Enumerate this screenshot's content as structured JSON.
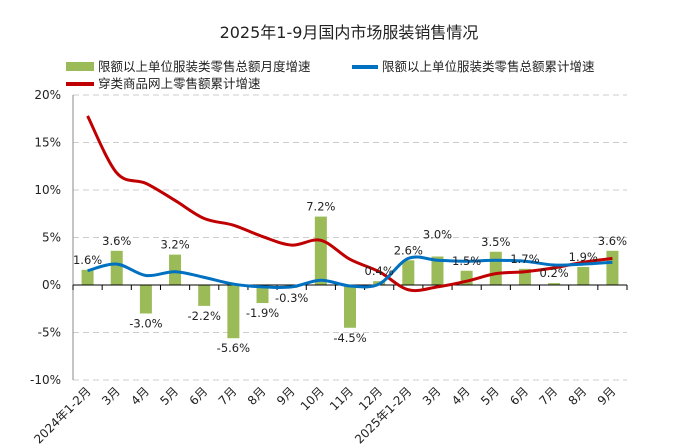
{
  "chart_data": {
    "type": "bar+line",
    "title": "2025年1-9月国内市场服装销售情况",
    "categories": [
      "2024年1-2月",
      "3月",
      "4月",
      "5月",
      "6月",
      "7月",
      "8月",
      "9月",
      "10月",
      "11月",
      "12月",
      "2025年1-2月",
      "3月",
      "4月",
      "5月",
      "6月",
      "7月",
      "8月",
      "9月"
    ],
    "ylim": [
      -10,
      20
    ],
    "yticks": [
      -10,
      -5,
      0,
      5,
      10,
      15,
      20
    ],
    "ytick_format": "%",
    "grid": true,
    "legend_placement": "top",
    "series": [
      {
        "name": "限额以上单位服装类零售总额月度增速",
        "type": "bar",
        "color": "#9BBB59",
        "values": [
          1.6,
          3.6,
          -3.0,
          3.2,
          -2.2,
          -5.6,
          -1.9,
          -0.3,
          7.2,
          -4.5,
          0.4,
          2.6,
          3.0,
          1.5,
          3.5,
          1.7,
          0.2,
          1.9,
          3.6
        ],
        "labels": [
          "1.6%",
          "3.6%",
          "-3.0%",
          "3.2%",
          "-2.2%",
          "-5.6%",
          "-1.9%",
          "-0.3%",
          "7.2%",
          "-4.5%",
          "0.4%",
          "2.6%",
          "3.0%",
          "1.5%",
          "3.5%",
          "1.7%",
          "0.2%",
          "1.9%",
          "3.6%"
        ]
      },
      {
        "name": "限额以上单位服装类零售总额累计增速",
        "type": "line",
        "color": "#0070C0",
        "values": [
          1.5,
          2.2,
          1.0,
          1.4,
          0.8,
          0.1,
          -0.2,
          -0.2,
          0.5,
          -0.1,
          0.1,
          2.8,
          2.6,
          2.5,
          2.6,
          2.5,
          2.1,
          2.2,
          2.4
        ]
      },
      {
        "name": "穿类商品网上零售额累计增速",
        "type": "line",
        "color": "#C00000",
        "values": [
          17.8,
          11.8,
          10.7,
          8.9,
          7.0,
          6.3,
          5.1,
          4.2,
          4.7,
          2.7,
          1.4,
          -0.5,
          -0.2,
          0.4,
          1.2,
          1.4,
          1.8,
          2.4,
          2.8
        ]
      }
    ]
  }
}
